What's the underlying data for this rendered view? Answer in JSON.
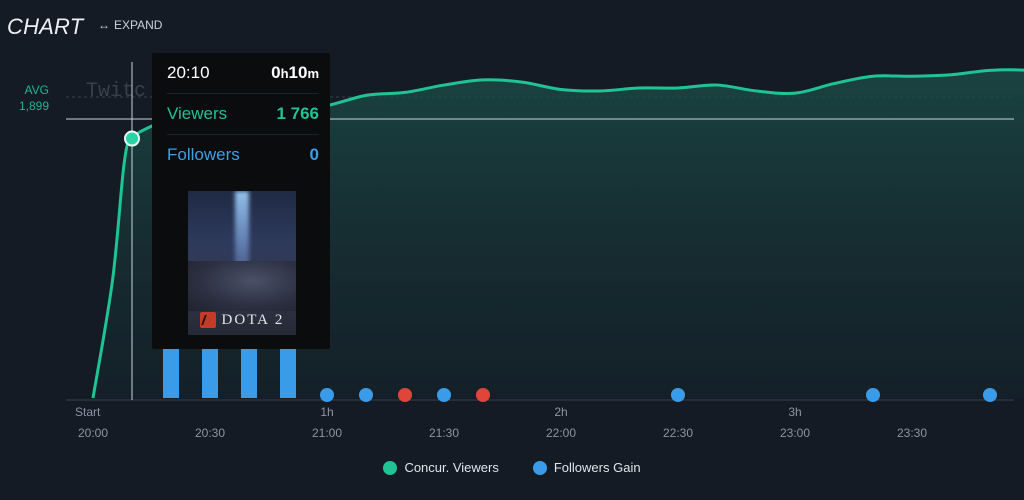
{
  "header": {
    "title": "CHART",
    "expand_label": "EXPAND",
    "expand_icon": "horizontal-arrows-icon"
  },
  "avg": {
    "label": "AVG",
    "value": "1,899"
  },
  "watermark": "Twitc",
  "tooltip": {
    "time": "20:10",
    "duration_hours": "0",
    "duration_h_unit": "h",
    "duration_minutes": "10",
    "duration_m_unit": "m",
    "viewers_label": "Viewers",
    "viewers_value": "1 766",
    "followers_label": "Followers",
    "followers_value": "0",
    "game_title": "DOTA 2"
  },
  "legend": {
    "viewers": "Concur. Viewers",
    "followers": "Followers Gain"
  },
  "colors": {
    "background": "#141b25",
    "viewers": "#20c494",
    "followers": "#3a9ce8",
    "negative": "#e0453a",
    "avg_line": "#c9d3dc"
  },
  "chart_data": {
    "type": "line",
    "x_unit": "minutes since 20:00",
    "x_tick_labels_top": [
      "Start",
      "",
      "1h",
      "",
      "2h",
      "",
      "3h",
      ""
    ],
    "x_tick_labels_bottom": [
      "20:00",
      "20:30",
      "21:00",
      "21:30",
      "22:00",
      "22:30",
      "23:00",
      "23:30"
    ],
    "avg": 1899,
    "series": [
      {
        "name": "Concur. Viewers",
        "points": [
          [
            0,
            0
          ],
          [
            5,
            800
          ],
          [
            8,
            1600
          ],
          [
            10,
            1766
          ],
          [
            15,
            1850
          ],
          [
            20,
            1900
          ],
          [
            25,
            1925
          ],
          [
            30,
            1950
          ],
          [
            40,
            1960
          ],
          [
            50,
            1960
          ],
          [
            60,
            1990
          ],
          [
            70,
            2060
          ],
          [
            80,
            2080
          ],
          [
            90,
            2130
          ],
          [
            100,
            2165
          ],
          [
            110,
            2150
          ],
          [
            120,
            2100
          ],
          [
            130,
            2090
          ],
          [
            140,
            2110
          ],
          [
            150,
            2110
          ],
          [
            160,
            2130
          ],
          [
            170,
            2090
          ],
          [
            180,
            2075
          ],
          [
            190,
            2140
          ],
          [
            200,
            2190
          ],
          [
            210,
            2190
          ],
          [
            220,
            2200
          ],
          [
            230,
            2230
          ],
          [
            240,
            2230
          ],
          [
            245,
            2205
          ]
        ]
      },
      {
        "name": "Followers Gain",
        "type": "bar",
        "points": [
          [
            20,
            8
          ],
          [
            30,
            8
          ],
          [
            40,
            8
          ],
          [
            50,
            8
          ],
          [
            60,
            0
          ],
          [
            70,
            0
          ],
          [
            80,
            -1
          ],
          [
            90,
            0
          ],
          [
            100,
            -1
          ],
          [
            150,
            0
          ],
          [
            200,
            0
          ],
          [
            230,
            0
          ]
        ]
      }
    ]
  }
}
